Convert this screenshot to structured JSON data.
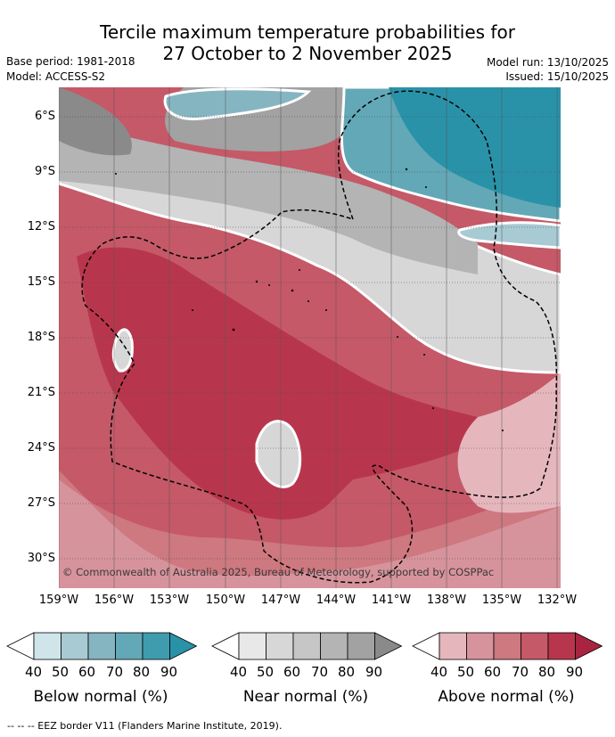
{
  "header": {
    "title_line1": "Tercile maximum temperature probabilities for",
    "title_line2": "27 October to 2 November 2025",
    "base_period": "Base period: 1981-2018",
    "model": "Model: ACCESS-S2",
    "model_run": "Model run: 13/10/2025",
    "issued": "Issued: 15/10/2025"
  },
  "map": {
    "lat_labels": [
      "6°S",
      "9°S",
      "12°S",
      "15°S",
      "18°S",
      "21°S",
      "24°S",
      "27°S",
      "30°S"
    ],
    "lon_labels": [
      "159°W",
      "156°W",
      "153°W",
      "150°W",
      "147°W",
      "144°W",
      "141°W",
      "138°W",
      "135°W",
      "132°W"
    ],
    "copyright": "© Commonwealth of Australia 2025, Bureau of Meteorology, supported by COSPPac"
  },
  "legend": {
    "bars": [
      {
        "title": "Below normal (%)",
        "ticks": [
          "40",
          "50",
          "60",
          "70",
          "80",
          "90"
        ],
        "colors": [
          "#ffffff",
          "#cfe5ea",
          "#a7cad3",
          "#86b5c2",
          "#63a8b7",
          "#3f9caf",
          "#2a92a8"
        ]
      },
      {
        "title": "Near normal (%)",
        "ticks": [
          "40",
          "50",
          "60",
          "70",
          "80",
          "90"
        ],
        "colors": [
          "#ffffff",
          "#e8e8e8",
          "#d7d7d7",
          "#c6c6c6",
          "#b4b4b4",
          "#a2a2a2",
          "#8a8a8a"
        ]
      },
      {
        "title": "Above normal (%)",
        "ticks": [
          "40",
          "50",
          "60",
          "70",
          "80",
          "90"
        ],
        "colors": [
          "#ffffff",
          "#e5b7bd",
          "#d7939c",
          "#ce7880",
          "#c55968",
          "#b8364d",
          "#a82440"
        ]
      }
    ]
  },
  "footer": {
    "eez_note": "--  --  -- EEZ border V11 (Flanders Marine Institute, 2019)."
  }
}
